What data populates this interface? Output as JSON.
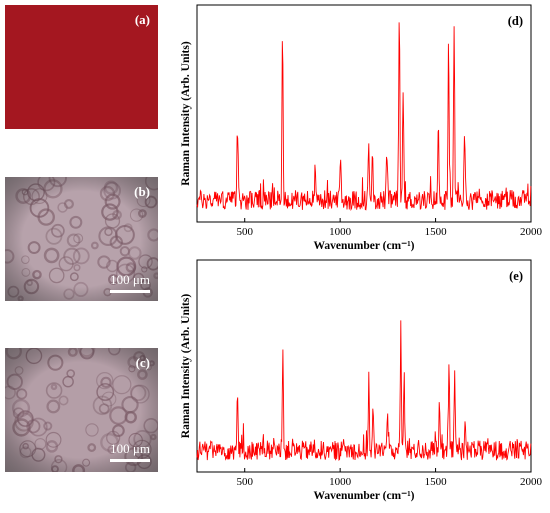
{
  "images": [
    {
      "label": "(a)",
      "color": "#a1151e"
    },
    {
      "label": "(b)",
      "color": "#b7a2ab",
      "scale_label": "100 μm"
    },
    {
      "label": "(c)",
      "color": "#b49ea7",
      "scale_label": "100 μm"
    }
  ],
  "line_color": "#ff0000",
  "chart_data": [
    {
      "type": "line",
      "label": "(d)",
      "xlabel": "Wavenumber (cm⁻¹)",
      "ylabel": "Raman Intensity (Arb. Units)",
      "xlim": [
        250,
        2000
      ],
      "xticks": [
        500,
        1000,
        1500,
        2000
      ],
      "peaks": [
        [
          462,
          0.38
        ],
        [
          698,
          0.82
        ],
        [
          870,
          0.18
        ],
        [
          1002,
          0.22
        ],
        [
          1150,
          0.28
        ],
        [
          1170,
          0.22
        ],
        [
          1245,
          0.25
        ],
        [
          1310,
          0.93
        ],
        [
          1330,
          0.58
        ],
        [
          1515,
          0.4
        ],
        [
          1568,
          0.73
        ],
        [
          1597,
          0.86
        ],
        [
          1652,
          0.38
        ]
      ]
    },
    {
      "type": "line",
      "label": "(e)",
      "xlabel": "Wavenumber (cm⁻¹)",
      "ylabel": "Raman Intensity (Arb. Units)",
      "xlim": [
        250,
        2000
      ],
      "xticks": [
        500,
        1000,
        1500,
        2000
      ],
      "peaks": [
        [
          462,
          0.32
        ],
        [
          700,
          0.52
        ],
        [
          1150,
          0.34
        ],
        [
          1172,
          0.26
        ],
        [
          1248,
          0.23
        ],
        [
          1318,
          0.62
        ],
        [
          1335,
          0.4
        ],
        [
          1520,
          0.22
        ],
        [
          1570,
          0.42
        ],
        [
          1600,
          0.42
        ],
        [
          1655,
          0.2
        ]
      ]
    }
  ]
}
